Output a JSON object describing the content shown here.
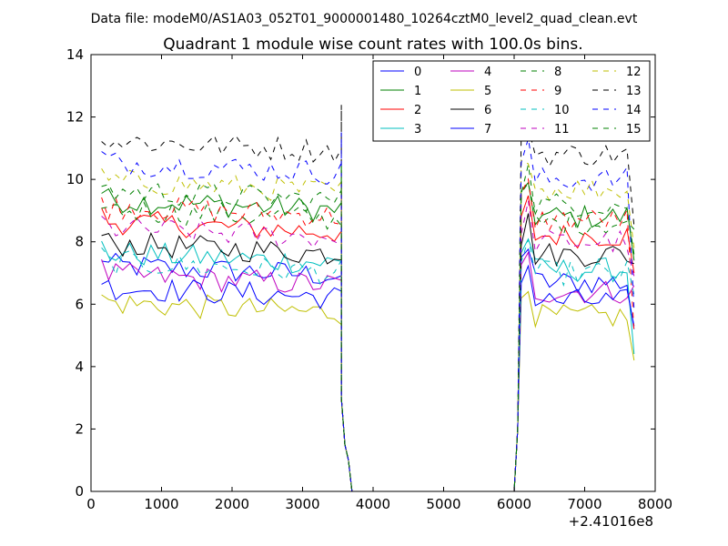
{
  "chart_data": {
    "type": "line",
    "suptitle": "Data file: modeM0/AS1A03_052T01_9000001480_10264cztM0_level2_quad_clean.evt",
    "title": "Quadrant 1 module wise count rates with 100.0s bins.",
    "xlabel": "",
    "ylabel": "",
    "x_offset_label": "+2.41016e8",
    "xlim": [
      0,
      8000
    ],
    "ylim": [
      0,
      14
    ],
    "xticks": [
      0,
      1000,
      2000,
      3000,
      4000,
      5000,
      6000,
      7000,
      8000
    ],
    "yticks": [
      0,
      2,
      4,
      6,
      8,
      10,
      12,
      14
    ],
    "grid": false,
    "legend_position": "top-right",
    "segments": {
      "a_start": 150,
      "step": 100,
      "a_count": 35,
      "drop": [
        [
          3550,
          3.0
        ],
        [
          3600,
          1.5
        ],
        [
          3650,
          1.0
        ],
        [
          3700,
          0.0
        ],
        [
          6000,
          0.0
        ],
        [
          6050,
          2.0
        ]
      ],
      "b_start": 6100,
      "b_end": 7700,
      "b_end_values": [
        5.2,
        7.4,
        7.0,
        4.4,
        6.6,
        4.2,
        7.3,
        5.3,
        8.4,
        5.1,
        6.3,
        6.9,
        7.8,
        8.5,
        5.8,
        7.6
      ]
    },
    "series": [
      {
        "name": "0",
        "color": "#0000ff",
        "dash": "solid",
        "a_level": 6.9,
        "b_level": 6.7
      },
      {
        "name": "1",
        "color": "#008000",
        "dash": "solid",
        "a_level": 9.0,
        "b_level": 8.8
      },
      {
        "name": "2",
        "color": "#ff0000",
        "dash": "solid",
        "a_level": 8.3,
        "b_level": 8.2
      },
      {
        "name": "3",
        "color": "#00bfbf",
        "dash": "solid",
        "a_level": 7.3,
        "b_level": 7.1
      },
      {
        "name": "4",
        "color": "#bf00bf",
        "dash": "solid",
        "a_level": 6.6,
        "b_level": 6.4
      },
      {
        "name": "5",
        "color": "#bfbf00",
        "dash": "solid",
        "a_level": 5.7,
        "b_level": 5.6
      },
      {
        "name": "6",
        "color": "#000000",
        "dash": "solid",
        "a_level": 7.6,
        "b_level": 7.6
      },
      {
        "name": "7",
        "color": "#0000ff",
        "dash": "solid",
        "a_level": 6.2,
        "b_level": 6.1
      },
      {
        "name": "8",
        "color": "#008000",
        "dash": "dashed",
        "a_level": 8.7,
        "b_level": 8.6
      },
      {
        "name": "9",
        "color": "#ff0000",
        "dash": "dashed",
        "a_level": 8.8,
        "b_level": 8.7
      },
      {
        "name": "10",
        "color": "#00bfbf",
        "dash": "dashed",
        "a_level": 7.0,
        "b_level": 7.0
      },
      {
        "name": "11",
        "color": "#bf00bf",
        "dash": "dashed",
        "a_level": 8.1,
        "b_level": 8.0
      },
      {
        "name": "12",
        "color": "#bfbf00",
        "dash": "dashed",
        "a_level": 9.6,
        "b_level": 9.7
      },
      {
        "name": "13",
        "color": "#000000",
        "dash": "dashed",
        "a_level": 10.9,
        "b_level": 10.8
      },
      {
        "name": "14",
        "color": "#0000ff",
        "dash": "dashed",
        "a_level": 10.2,
        "b_level": 10.0
      },
      {
        "name": "15",
        "color": "#008000",
        "dash": "dashed",
        "a_level": 9.3,
        "b_level": 9.2
      }
    ]
  }
}
